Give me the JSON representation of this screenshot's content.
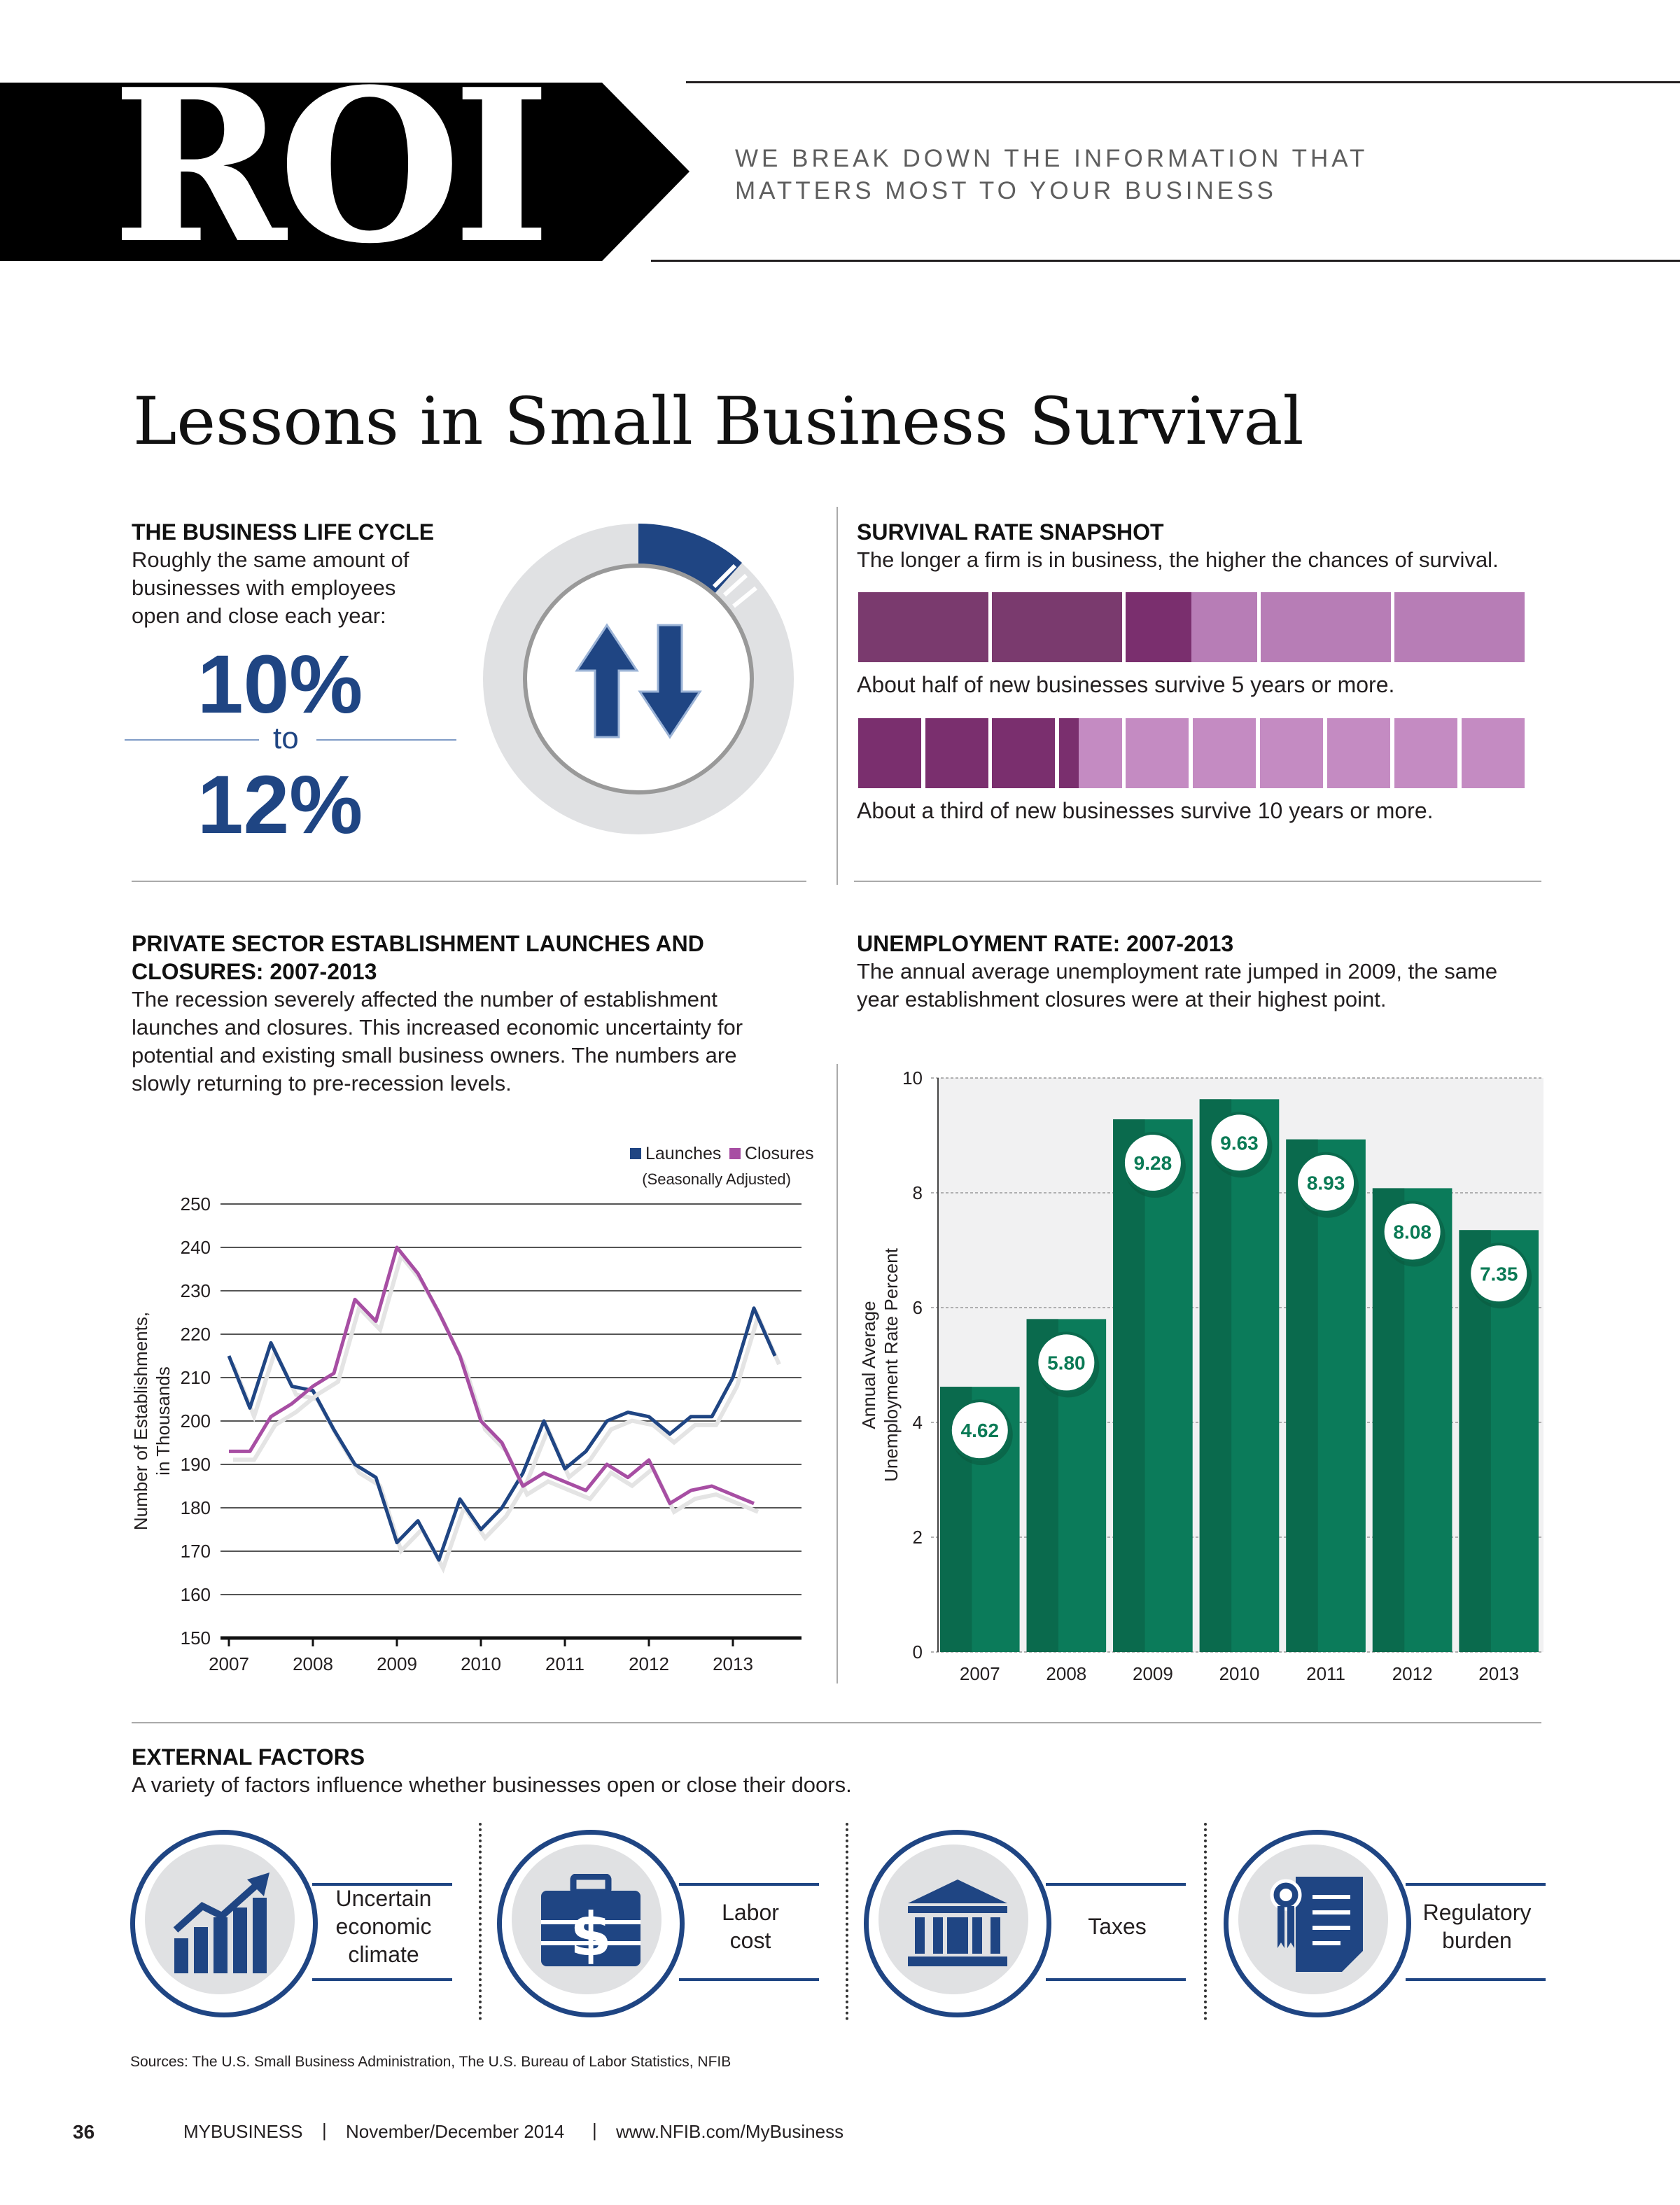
{
  "header": {
    "logo_text": "ROI",
    "tagline_line1": "WE BREAK DOWN THE INFORMATION THAT",
    "tagline_line2": "MATTERS MOST TO YOUR BUSINESS"
  },
  "title": "Lessons in Small Business Survival",
  "lifecycle": {
    "heading": "THE BUSINESS LIFE CYCLE",
    "text_line1": "Roughly the same amount of",
    "text_line2": "businesses with employees",
    "text_line3": "open and close each year:",
    "pct_low": "10%",
    "to_word": "to",
    "pct_high": "12%",
    "icon": "up-down-arrows-icon",
    "accent_color": "#1f4583"
  },
  "survival": {
    "heading": "SURVIVAL RATE SNAPSHOT",
    "text": "The longer a firm is in business, the higher the chances of survival.",
    "bar1_caption": "About half of new businesses survive 5 years or more.",
    "bar1_fraction": 0.5,
    "bar2_caption": "About a third of new businesses survive 10 years or more.",
    "bar2_fraction": 0.33,
    "dark_color": "#7a3a6e",
    "light_color": "#b77db6"
  },
  "launches": {
    "heading_line1": "PRIVATE SECTOR ESTABLISHMENT LAUNCHES AND",
    "heading_line2": "CLOSURES: 2007-2013",
    "text_line1": "The recession severely affected the number of establishment",
    "text_line2": "launches and closures. This increased economic uncertainty for",
    "text_line3": "potential and existing small business owners. The numbers are",
    "text_line4": "slowly returning to pre-recession levels.",
    "legend_launches": "Launches",
    "legend_closures": "Closures",
    "legend_note": "(Seasonally Adjusted)",
    "ylabel_line1": "Number of Establishments,",
    "ylabel_line2": "in Thousands"
  },
  "unemployment": {
    "heading": "UNEMPLOYMENT RATE: 2007-2013",
    "text_line1": "The annual average unemployment rate jumped in 2009, the same",
    "text_line2": "year establishment closures were at their highest point.",
    "ylabel_line1": "Annual Average",
    "ylabel_line2": "Unemployment Rate Percent"
  },
  "chart_data": [
    {
      "type": "line",
      "title": "",
      "xlabel": "",
      "ylabel": "Number of Establishments, in Thousands",
      "ylim": [
        150,
        250
      ],
      "yticks": [
        150,
        160,
        170,
        180,
        190,
        200,
        210,
        220,
        230,
        240,
        250
      ],
      "x_tick_labels": [
        "2007",
        "2008",
        "2009",
        "2010",
        "2011",
        "2012",
        "2013"
      ],
      "grid": true,
      "legend": "top-right",
      "x": [
        2007.0,
        2007.25,
        2007.5,
        2007.75,
        2008.0,
        2008.25,
        2008.5,
        2008.75,
        2009.0,
        2009.25,
        2009.5,
        2009.75,
        2010.0,
        2010.25,
        2010.5,
        2010.75,
        2011.0,
        2011.25,
        2011.5,
        2011.75,
        2012.0,
        2012.25,
        2012.5,
        2012.75,
        2013.0,
        2013.25,
        2013.5,
        2013.75
      ],
      "series": [
        {
          "name": "Launches",
          "color": "#1f4583",
          "values": [
            215,
            203,
            218,
            208,
            207,
            198,
            190,
            187,
            172,
            177,
            168,
            182,
            175,
            180,
            188,
            200,
            189,
            193,
            200,
            202,
            201,
            197,
            201,
            201,
            210,
            226,
            215,
            null
          ]
        },
        {
          "name": "Closures",
          "color": "#a74ea3",
          "values": [
            193,
            193,
            201,
            204,
            208,
            211,
            228,
            223,
            240,
            234,
            225,
            215,
            200,
            195,
            185,
            188,
            186,
            184,
            190,
            187,
            191,
            181,
            184,
            185,
            183,
            181,
            null,
            null
          ]
        }
      ]
    },
    {
      "type": "bar",
      "title": "",
      "xlabel": "",
      "ylabel": "Annual Average Unemployment Rate Percent",
      "categories": [
        "2007",
        "2008",
        "2009",
        "2010",
        "2011",
        "2012",
        "2013"
      ],
      "values": [
        4.62,
        5.8,
        9.28,
        9.63,
        8.93,
        8.08,
        7.35
      ],
      "data_labels": [
        "4.62",
        "5.80",
        "9.28",
        "9.63",
        "8.93",
        "8.08",
        "7.35"
      ],
      "ylim": [
        0,
        10
      ],
      "yticks": [
        0,
        2,
        4,
        6,
        8,
        10
      ],
      "bar_color": "#0b7b5a",
      "grid": true
    }
  ],
  "external": {
    "heading": "EXTERNAL FACTORS",
    "text": "A variety of factors influence whether businesses open or close their doors.",
    "items": [
      {
        "label_line1": "Uncertain",
        "label_line2": "economic",
        "label_line3": "climate",
        "icon": "rising-chart-icon"
      },
      {
        "label_line1": "Labor",
        "label_line2": "cost",
        "label_line3": "",
        "icon": "briefcase-dollar-icon"
      },
      {
        "label_line1": "Taxes",
        "label_line2": "",
        "label_line3": "",
        "icon": "government-building-icon"
      },
      {
        "label_line1": "Regulatory",
        "label_line2": "burden",
        "label_line3": "",
        "icon": "certificate-document-icon"
      }
    ],
    "sources": "Sources: The U.S. Small Business Administration, The U.S. Bureau of Labor Statistics, NFIB"
  },
  "footer": {
    "page_number": "36",
    "publication": "MYBUSINESS",
    "divider": "|",
    "issue": "November/December 2014",
    "url": "www.NFIB.com/MyBusiness"
  }
}
